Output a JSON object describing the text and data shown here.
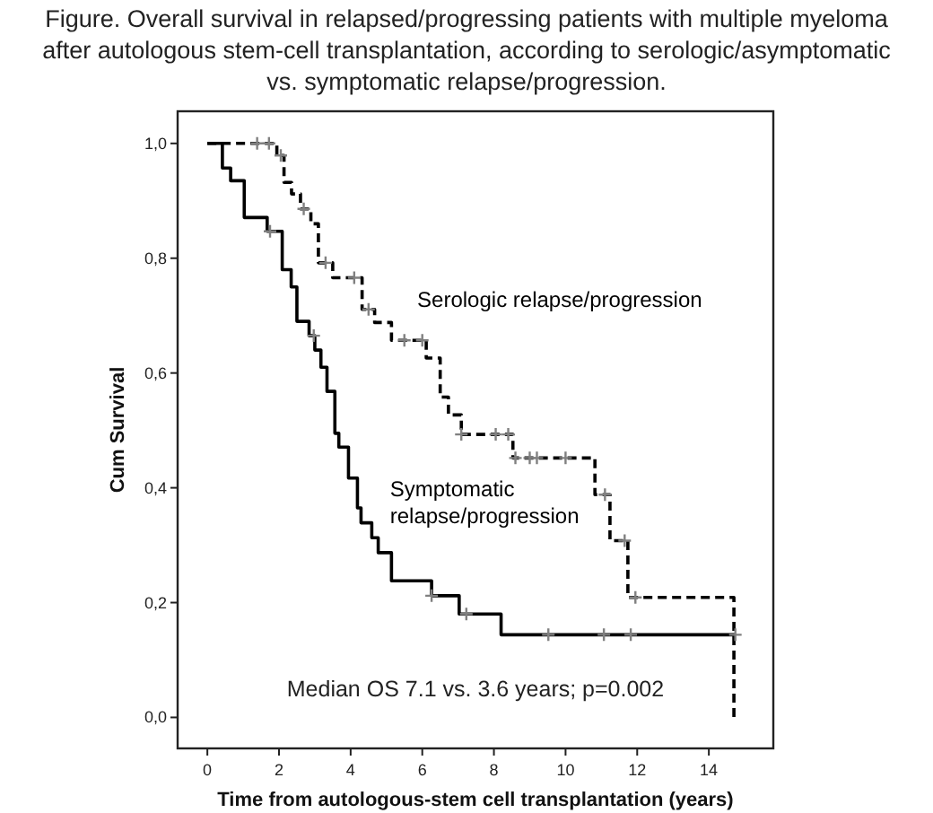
{
  "chart_data": {
    "type": "step",
    "title": "Figure. Overall survival in relapsed/progressing patients with multiple myeloma after autologous stem-cell transplantation,  according to serologic/asymptomatic vs.  symptomatic relapse/progression.",
    "xlabel": "Time from autologous-stem cell transplantation (years)",
    "ylabel": "Cum Survival",
    "annotations": [
      "Median OS 7.1 vs. 3.6 years; p=0.002"
    ],
    "xlim": [
      -0.83,
      15.8
    ],
    "xticks": [
      0,
      2,
      4,
      6,
      8,
      10,
      12,
      14
    ],
    "ylim": [
      -0.054,
      1.056
    ],
    "yticks": [
      {
        "value": 0,
        "label": "0,0"
      },
      {
        "value": 0.2,
        "label": "0,2"
      },
      {
        "value": 0.4,
        "label": "0,4"
      },
      {
        "value": 0.6,
        "label": "0,6"
      },
      {
        "value": 0.8,
        "label": "0,8"
      },
      {
        "value": 1,
        "label": "1,0"
      }
    ],
    "grid": false,
    "series": [
      {
        "name": "Serologic relapse/progression",
        "color": "#000000",
        "line_style": "dashed",
        "x": [
          0,
          1.94,
          2.14,
          2.35,
          2.6,
          2.89,
          3.1,
          3.5,
          4.32,
          4.67,
          5.14,
          6.11,
          6.5,
          6.73,
          7.09,
          8.53,
          10.82,
          11.24,
          11.74,
          14.7
        ],
        "values": [
          1,
          0.979,
          0.932,
          0.912,
          0.886,
          0.86,
          0.792,
          0.766,
          0.711,
          0.688,
          0.657,
          0.626,
          0.558,
          0.527,
          0.493,
          0.452,
          0.388,
          0.308,
          0.209,
          0
        ]
      },
      {
        "name": "Symptomatic relapse/progression",
        "color": "#000000",
        "line_style": "solid",
        "x": [
          0,
          0.42,
          0.65,
          1.03,
          1.67,
          2.09,
          2.34,
          2.5,
          2.84,
          3.0,
          3.17,
          3.34,
          3.56,
          3.67,
          3.94,
          4.19,
          4.29,
          4.59,
          4.77,
          5.14,
          6.26,
          7.03,
          8.2,
          14.74
        ],
        "values": [
          1,
          0.957,
          0.935,
          0.871,
          0.847,
          0.78,
          0.75,
          0.69,
          0.665,
          0.64,
          0.61,
          0.568,
          0.495,
          0.471,
          0.417,
          0.365,
          0.339,
          0.313,
          0.287,
          0.238,
          0.212,
          0.18,
          0.144,
          0.144
        ]
      },
      {
        "type": "scatter",
        "marker": "cross",
        "color": "#808080",
        "x": [
          1.39,
          1.72,
          2.05,
          2.69,
          3.3,
          4.1,
          4.5,
          5.5,
          6.0,
          7.09,
          8.05,
          8.4,
          8.6,
          9.0,
          9.2,
          10.0,
          11.1,
          11.65,
          11.95
        ],
        "values": [
          1,
          1,
          0.979,
          0.886,
          0.792,
          0.766,
          0.711,
          0.657,
          0.657,
          0.493,
          0.493,
          0.493,
          0.452,
          0.452,
          0.452,
          0.452,
          0.388,
          0.308,
          0.209
        ]
      },
      {
        "type": "scatter",
        "marker": "cross",
        "color": "#808080",
        "x": [
          1.75,
          2.97,
          6.26,
          7.23,
          9.52,
          11.07,
          11.82,
          14.74
        ],
        "values": [
          0.847,
          0.665,
          0.212,
          0.18,
          0.144,
          0.144,
          0.144,
          0.144
        ]
      }
    ]
  }
}
